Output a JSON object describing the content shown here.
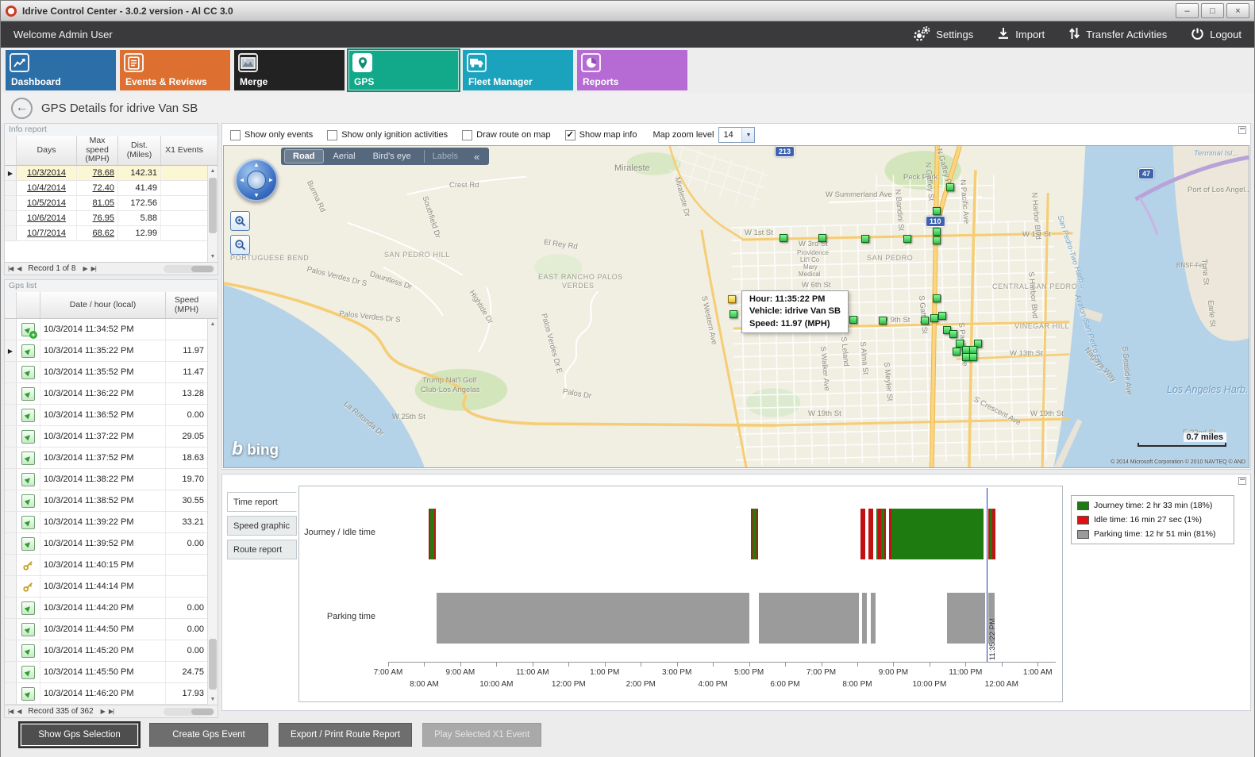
{
  "window": {
    "title": "Idrive Control Center - 3.0.2 version - Al CC 3.0"
  },
  "titlebar_buttons": {
    "minimize": "–",
    "maximize": "□",
    "close": "×"
  },
  "topbar": {
    "welcome": "Welcome Admin User",
    "settings": "Settings",
    "import": "Import",
    "transfer": "Transfer Activities",
    "logout": "Logout"
  },
  "nav_tiles": [
    {
      "label": "Dashboard",
      "color": "#2c6fa8",
      "selected": false
    },
    {
      "label": "Events & Reviews",
      "color": "#dd7030",
      "selected": false
    },
    {
      "label": "Merge",
      "color": "#222222",
      "selected": false
    },
    {
      "label": "GPS",
      "color": "#12a88a",
      "selected": true
    },
    {
      "label": "Fleet Manager",
      "color": "#1ba3be",
      "selected": false
    },
    {
      "label": "Reports",
      "color": "#b56ad4",
      "selected": false
    }
  ],
  "page": {
    "title": "GPS Details for idrive Van SB",
    "back_glyph": "←"
  },
  "nav_glyphs": {
    "first": "|◀",
    "prev": "◀",
    "next": "▶",
    "last": "▶|"
  },
  "info_report": {
    "panel_title": "Info report",
    "columns": [
      "Days",
      "Max speed (MPH)",
      "Dist. (Miles)",
      "X1 Events"
    ],
    "rows": [
      {
        "days": "10/3/2014",
        "max_speed": "78.68",
        "dist": "142.31",
        "x1": "",
        "selected": true
      },
      {
        "days": "10/4/2014",
        "max_speed": "72.40",
        "dist": "41.49",
        "x1": "",
        "selected": false
      },
      {
        "days": "10/5/2014",
        "max_speed": "81.05",
        "dist": "172.56",
        "x1": "",
        "selected": false
      },
      {
        "days": "10/6/2014",
        "max_speed": "76.95",
        "dist": "5.88",
        "x1": "",
        "selected": false
      },
      {
        "days": "10/7/2014",
        "max_speed": "68.62",
        "dist": "12.99",
        "x1": "",
        "selected": false
      }
    ],
    "record_nav": "Record 1 of 8"
  },
  "gps_list": {
    "panel_title": "Gps list",
    "columns": [
      "Date / hour (local)",
      "Speed (MPH)"
    ],
    "rows": [
      {
        "icon": "start",
        "date": "10/3/2014 11:34:52 PM",
        "speed": "",
        "selected": false
      },
      {
        "icon": "point",
        "date": "10/3/2014 11:35:22 PM",
        "speed": "11.97",
        "selected": true
      },
      {
        "icon": "point",
        "date": "10/3/2014 11:35:52 PM",
        "speed": "11.47",
        "selected": false
      },
      {
        "icon": "point",
        "date": "10/3/2014 11:36:22 PM",
        "speed": "13.28",
        "selected": false
      },
      {
        "icon": "point",
        "date": "10/3/2014 11:36:52 PM",
        "speed": "0.00",
        "selected": false
      },
      {
        "icon": "point",
        "date": "10/3/2014 11:37:22 PM",
        "speed": "29.05",
        "selected": false
      },
      {
        "icon": "point",
        "date": "10/3/2014 11:37:52 PM",
        "speed": "18.63",
        "selected": false
      },
      {
        "icon": "point",
        "date": "10/3/2014 11:38:22 PM",
        "speed": "19.70",
        "selected": false
      },
      {
        "icon": "point",
        "date": "10/3/2014 11:38:52 PM",
        "speed": "30.55",
        "selected": false
      },
      {
        "icon": "point",
        "date": "10/3/2014 11:39:22 PM",
        "speed": "33.21",
        "selected": false
      },
      {
        "icon": "point",
        "date": "10/3/2014 11:39:52 PM",
        "speed": "0.00",
        "selected": false
      },
      {
        "icon": "key",
        "date": "10/3/2014 11:40:15 PM",
        "speed": "",
        "selected": false
      },
      {
        "icon": "key",
        "date": "10/3/2014 11:44:14 PM",
        "speed": "",
        "selected": false
      },
      {
        "icon": "point",
        "date": "10/3/2014 11:44:20 PM",
        "speed": "0.00",
        "selected": false
      },
      {
        "icon": "point",
        "date": "10/3/2014 11:44:50 PM",
        "speed": "0.00",
        "selected": false
      },
      {
        "icon": "point",
        "date": "10/3/2014 11:45:20 PM",
        "speed": "0.00",
        "selected": false
      },
      {
        "icon": "point",
        "date": "10/3/2014 11:45:50 PM",
        "speed": "24.75",
        "selected": false
      },
      {
        "icon": "point",
        "date": "10/3/2014 11:46:20 PM",
        "speed": "17.93",
        "selected": false
      }
    ],
    "record_nav": "Record 335 of 362"
  },
  "map_toolbar": {
    "checkboxes": [
      {
        "label": "Show only events",
        "checked": false
      },
      {
        "label": "Show only ignition activities",
        "checked": false
      },
      {
        "label": "Draw route on map",
        "checked": false
      },
      {
        "label": "Show map info",
        "checked": true
      }
    ],
    "zoom_label": "Map zoom level",
    "zoom_value": "14"
  },
  "map": {
    "view_tabs": [
      "Road",
      "Aerial",
      "Bird's eye",
      "Labels"
    ],
    "active_tab": "Road",
    "collapse_glyph": "«",
    "tooltip": {
      "hour": "Hour: 11:35:22 PM",
      "vehicle": "Vehicle: idrive Van SB",
      "speed": "Speed: 11.97 (MPH)"
    },
    "logo_b": "b",
    "logo": "bing",
    "scale": "0.7 miles",
    "copyright": "© 2014 Microsoft Corporation  © 2010 NAVTEQ  © AND",
    "shields": [
      [
        "213",
        694,
        0
      ],
      [
        "110",
        884,
        88
      ],
      [
        "47",
        1152,
        28
      ]
    ],
    "labels": [
      [
        "Miraleste",
        492,
        22,
        0,
        "city"
      ],
      [
        "Peck Park",
        856,
        34,
        0,
        ""
      ],
      [
        "W Summerland Ave",
        758,
        56,
        0,
        ""
      ],
      [
        "Crest Rd",
        284,
        44,
        0,
        ""
      ],
      [
        "Burma Rd",
        112,
        42,
        65,
        ""
      ],
      [
        "Southfield Dr",
        258,
        62,
        72,
        ""
      ],
      [
        "Miraleste Dr",
        576,
        38,
        75,
        ""
      ],
      [
        "PORTUGUESE BEND",
        8,
        136,
        0,
        "caps"
      ],
      [
        "Palos Verdes Dr S",
        106,
        150,
        14,
        ""
      ],
      [
        "Palos Verdes Dr S",
        146,
        206,
        6,
        ""
      ],
      [
        "SAN PEDRO HILL",
        202,
        132,
        0,
        "caps"
      ],
      [
        "El Rey Rd",
        404,
        116,
        8,
        ""
      ],
      [
        "EAST RANCHO PALOS",
        396,
        160,
        0,
        "caps"
      ],
      [
        "VERDES",
        426,
        171,
        0,
        "caps"
      ],
      [
        "Dauntless Dr",
        186,
        156,
        18,
        ""
      ],
      [
        "Hightide Dr",
        316,
        180,
        58,
        ""
      ],
      [
        "Palos Verdes Dr E",
        408,
        210,
        75,
        ""
      ],
      [
        "Trump Nat'l Golf",
        250,
        290,
        0,
        ""
      ],
      [
        "Club-Los Angelas",
        248,
        302,
        0,
        ""
      ],
      [
        "La Rotonda Dr",
        156,
        320,
        40,
        ""
      ],
      [
        "Palos Dr",
        428,
        304,
        10,
        ""
      ],
      [
        "W 25th St",
        212,
        336,
        0,
        ""
      ],
      [
        "W 1st St",
        656,
        104,
        0,
        ""
      ],
      [
        "W 1st St",
        1006,
        106,
        0,
        ""
      ],
      [
        "W 3rd St",
        724,
        118,
        0,
        ""
      ],
      [
        "Providence",
        722,
        130,
        0,
        "sm"
      ],
      [
        "Lit'l Co",
        726,
        139,
        0,
        "sm"
      ],
      [
        "Mary",
        730,
        148,
        0,
        "sm"
      ],
      [
        "Medical",
        724,
        157,
        0,
        "sm"
      ],
      [
        "W 6th St",
        728,
        170,
        0,
        ""
      ],
      [
        "SAN PEDRO",
        810,
        136,
        0,
        "caps"
      ],
      [
        "CENTRAL SAN PEDRO",
        968,
        172,
        0,
        "caps"
      ],
      [
        "W 9th St",
        828,
        214,
        0,
        ""
      ],
      [
        "VINEGAR HILL",
        996,
        222,
        0,
        "caps"
      ],
      [
        "W 13th St",
        990,
        256,
        0,
        ""
      ],
      [
        "W 19th St",
        736,
        332,
        0,
        ""
      ],
      [
        "W 19th St",
        1016,
        332,
        0,
        ""
      ],
      [
        "E 22nd St",
        1208,
        356,
        0,
        ""
      ],
      [
        "S Western Ave",
        610,
        188,
        78,
        ""
      ],
      [
        "S Walker Ave",
        760,
        252,
        85,
        ""
      ],
      [
        "S Leland",
        786,
        240,
        85,
        ""
      ],
      [
        "S Alma St",
        810,
        246,
        85,
        ""
      ],
      [
        "S Meyler St",
        840,
        272,
        85,
        ""
      ],
      [
        "S Gaffey St",
        884,
        188,
        85,
        ""
      ],
      [
        "S Pacific Ave",
        934,
        222,
        85,
        ""
      ],
      [
        "N Gaffey St",
        892,
        20,
        85,
        ""
      ],
      [
        "N Bandini St",
        854,
        54,
        85,
        ""
      ],
      [
        "N Pacific Ave",
        936,
        42,
        85,
        ""
      ],
      [
        "N Harbor Blvd",
        1026,
        58,
        85,
        ""
      ],
      [
        "S Harbor Blvd",
        1022,
        158,
        85,
        ""
      ],
      [
        "S Crescent Ave",
        948,
        314,
        28,
        ""
      ],
      [
        "N Gaffey Pl",
        906,
        2,
        75,
        ""
      ],
      [
        "San Pedro-Two Harb...",
        1058,
        86,
        72,
        "blue"
      ],
      [
        "Avalon-San Pedro Ferry",
        1080,
        186,
        72,
        "blue"
      ],
      [
        "Nagoya Way",
        1090,
        252,
        48,
        ""
      ],
      [
        "S Seaside Ave",
        1140,
        252,
        85,
        ""
      ],
      [
        "BNSF-Ferr",
        1200,
        146,
        0,
        "sm"
      ],
      [
        "Tuna St",
        1240,
        142,
        85,
        ""
      ],
      [
        "Earle St",
        1248,
        194,
        85,
        ""
      ],
      [
        "Los Angeles Harb...",
        1188,
        300,
        0,
        "big-blue"
      ],
      [
        "Port of Los Angel...",
        1214,
        50,
        0,
        ""
      ],
      [
        "Terminal Isl...",
        1222,
        4,
        0,
        "blue"
      ]
    ],
    "markers": [
      [
        915,
        52
      ],
      [
        898,
        82
      ],
      [
        705,
        116
      ],
      [
        754,
        116
      ],
      [
        808,
        117
      ],
      [
        861,
        117
      ],
      [
        898,
        108
      ],
      [
        898,
        119
      ],
      [
        640,
        193,
        1
      ],
      [
        642,
        212
      ],
      [
        767,
        219
      ],
      [
        793,
        219
      ],
      [
        830,
        220
      ],
      [
        883,
        220
      ],
      [
        895,
        217
      ],
      [
        905,
        214
      ],
      [
        898,
        192
      ],
      [
        911,
        232
      ],
      [
        919,
        237
      ],
      [
        927,
        249
      ],
      [
        950,
        249
      ],
      [
        935,
        257
      ],
      [
        944,
        257
      ],
      [
        935,
        266
      ],
      [
        944,
        266
      ],
      [
        923,
        259
      ]
    ]
  },
  "chart_tabs": [
    {
      "label": "Time report",
      "active": true
    },
    {
      "label": "Speed graphic",
      "active": false
    },
    {
      "label": "Route report",
      "active": false
    }
  ],
  "chart_data": {
    "type": "timeline",
    "rows": [
      "Journey / Idle time",
      "Parking time"
    ],
    "x_ticks": [
      "7:00 AM",
      "8:00 AM",
      "9:00 AM",
      "10:00 AM",
      "11:00 AM",
      "12:00 PM",
      "1:00 PM",
      "2:00 PM",
      "3:00 PM",
      "4:00 PM",
      "5:00 PM",
      "6:00 PM",
      "7:00 PM",
      "8:00 PM",
      "9:00 PM",
      "10:00 PM",
      "11:00 PM",
      "12:00 AM",
      "1:00 AM"
    ],
    "x_range_hours_from_7am": [
      0,
      18.5
    ],
    "colors": {
      "journey": "#1d7b10",
      "idle": "#c11212",
      "parking": "#9b9b9b"
    },
    "legend": [
      {
        "label": "Journey time: 2 hr 33 min (18%)",
        "color": "#1d7b10"
      },
      {
        "label": "Idle time: 16 min 27 sec (1%)",
        "color": "#e01010"
      },
      {
        "label": "Parking time: 12 hr 51 min (81%)",
        "color": "#9b9b9b"
      }
    ],
    "journey_segments": [
      {
        "s": 1.12,
        "e": 1.17,
        "k": "idle"
      },
      {
        "s": 1.17,
        "e": 1.28,
        "k": "journey"
      },
      {
        "s": 1.28,
        "e": 1.33,
        "k": "idle"
      },
      {
        "s": 10.05,
        "e": 10.1,
        "k": "idle"
      },
      {
        "s": 10.1,
        "e": 10.2,
        "k": "journey"
      },
      {
        "s": 10.2,
        "e": 10.25,
        "k": "idle"
      },
      {
        "s": 13.08,
        "e": 13.22,
        "k": "idle"
      },
      {
        "s": 13.3,
        "e": 13.43,
        "k": "idle"
      },
      {
        "s": 13.52,
        "e": 13.58,
        "k": "journey"
      },
      {
        "s": 13.58,
        "e": 13.66,
        "k": "idle"
      },
      {
        "s": 13.66,
        "e": 13.74,
        "k": "journey"
      },
      {
        "s": 13.74,
        "e": 13.8,
        "k": "idle"
      },
      {
        "s": 13.88,
        "e": 13.95,
        "k": "idle"
      },
      {
        "s": 13.95,
        "e": 16.5,
        "k": "journey"
      },
      {
        "s": 16.62,
        "e": 16.68,
        "k": "idle"
      },
      {
        "s": 16.68,
        "e": 16.75,
        "k": "journey"
      },
      {
        "s": 16.75,
        "e": 16.82,
        "k": "idle"
      }
    ],
    "parking_segments": [
      {
        "s": 1.35,
        "e": 10.02
      },
      {
        "s": 10.27,
        "e": 13.05
      },
      {
        "s": 13.13,
        "e": 13.27
      },
      {
        "s": 13.37,
        "e": 13.5
      },
      {
        "s": 15.48,
        "e": 16.55
      },
      {
        "s": 16.63,
        "e": 16.8
      }
    ],
    "cursor": {
      "t": 16.589,
      "label": "11:35:22 PM"
    }
  },
  "bottom_buttons": [
    {
      "label": "Show Gps Selection",
      "state": "focused"
    },
    {
      "label": "Create Gps Event",
      "state": "normal"
    },
    {
      "label": "Export / Print Route Report",
      "state": "normal"
    },
    {
      "label": "Play Selected X1 Event",
      "state": "disabled"
    }
  ]
}
